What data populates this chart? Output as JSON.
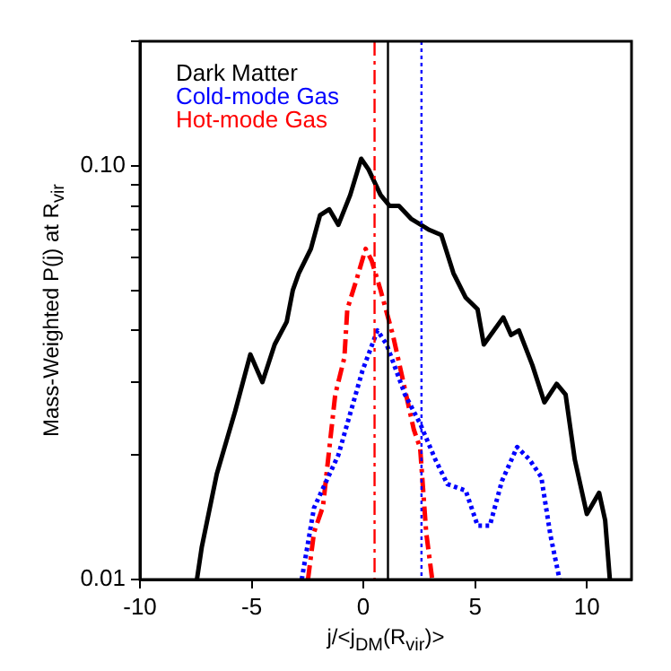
{
  "chart_data": {
    "type": "line",
    "xlabel": "j/<j$_{DM}$(R$_{vir}$)>",
    "ylabel": "Mass-Weighted P(j) at R$_{vir}$",
    "log": "y",
    "xlim": [
      -10,
      12
    ],
    "xticks": [
      -10,
      -5,
      0,
      5,
      10
    ],
    "ylim": [
      0.01,
      0.2
    ],
    "yticks": [
      {
        "value": 0.01,
        "label": "0.01"
      },
      {
        "value": 0.02,
        "label": null
      },
      {
        "value": 0.03,
        "label": null
      },
      {
        "value": 0.04,
        "label": null
      },
      {
        "value": 0.05,
        "label": null
      },
      {
        "value": 0.06,
        "label": null
      },
      {
        "value": 0.07,
        "label": null
      },
      {
        "value": 0.08,
        "label": null
      },
      {
        "value": 0.09,
        "label": null
      },
      {
        "value": 0.1,
        "label": "0.10"
      },
      {
        "value": 0.2,
        "label": null
      }
    ],
    "grid": false,
    "legend": "top left",
    "marker": "none",
    "series": [
      {
        "name": "Dark Matter",
        "color": "#000000",
        "line_style": "solid",
        "x": [
          -7.45,
          -7.23,
          -6.56,
          -5.74,
          -5.06,
          -4.52,
          -3.97,
          -3.43,
          -3.16,
          -2.89,
          -2.35,
          -1.94,
          -1.53,
          -1.12,
          -0.59,
          -0.1,
          0.23,
          0.77,
          1.18,
          1.59,
          2.13,
          2.95,
          3.49,
          4.03,
          4.58,
          5.11,
          5.39,
          6.26,
          6.61,
          6.96,
          7.56,
          8.1,
          8.65,
          9.05,
          9.46,
          10.0,
          10.55,
          10.82,
          11.03
        ],
        "values": [
          0.01,
          0.012,
          0.018,
          0.0255,
          0.035,
          0.03,
          0.037,
          0.042,
          0.05,
          0.055,
          0.063,
          0.076,
          0.0785,
          0.072,
          0.085,
          0.104,
          0.098,
          0.085,
          0.08,
          0.08,
          0.0745,
          0.07,
          0.068,
          0.055,
          0.048,
          0.045,
          0.037,
          0.043,
          0.039,
          0.04,
          0.033,
          0.0268,
          0.0297,
          0.028,
          0.0195,
          0.0144,
          0.0162,
          0.0139,
          0.01
        ]
      },
      {
        "name": "Cold-mode Gas",
        "color": "#0000ff",
        "line_style": "dotted",
        "x": [
          -2.76,
          -2.21,
          -1.12,
          -0.04,
          0.63,
          1.04,
          1.86,
          2.54,
          3.22,
          3.76,
          4.58,
          5.11,
          5.66,
          6.2,
          6.88,
          7.43,
          7.96,
          8.37,
          8.78
        ],
        "values": [
          0.01,
          0.0149,
          0.02,
          0.032,
          0.04,
          0.037,
          0.028,
          0.0238,
          0.0195,
          0.017,
          0.0164,
          0.0135,
          0.0135,
          0.0173,
          0.0209,
          0.0195,
          0.0177,
          0.0128,
          0.01
        ]
      },
      {
        "name": "Hot-mode Gas",
        "color": "#ff0000",
        "line_style": "dashed",
        "x": [
          -2.48,
          -2.21,
          -1.81,
          -1.26,
          -0.85,
          -0.72,
          -0.31,
          0.1,
          0.37,
          0.77,
          1.32,
          1.73,
          2.26,
          2.54,
          2.81,
          3.08
        ],
        "values": [
          0.01,
          0.013,
          0.015,
          0.028,
          0.0344,
          0.045,
          0.053,
          0.063,
          0.059,
          0.05,
          0.039,
          0.031,
          0.023,
          0.0208,
          0.013,
          0.01
        ]
      }
    ],
    "ref_lines": [
      {
        "axis": "x",
        "value": 1.1,
        "color": "#000000",
        "line_style": "solid"
      },
      {
        "axis": "x",
        "value": 0.5,
        "color": "#ff0000",
        "line_style": "dashed"
      },
      {
        "axis": "x",
        "value": 2.6,
        "color": "#0000ff",
        "line_style": "dotted"
      }
    ]
  }
}
